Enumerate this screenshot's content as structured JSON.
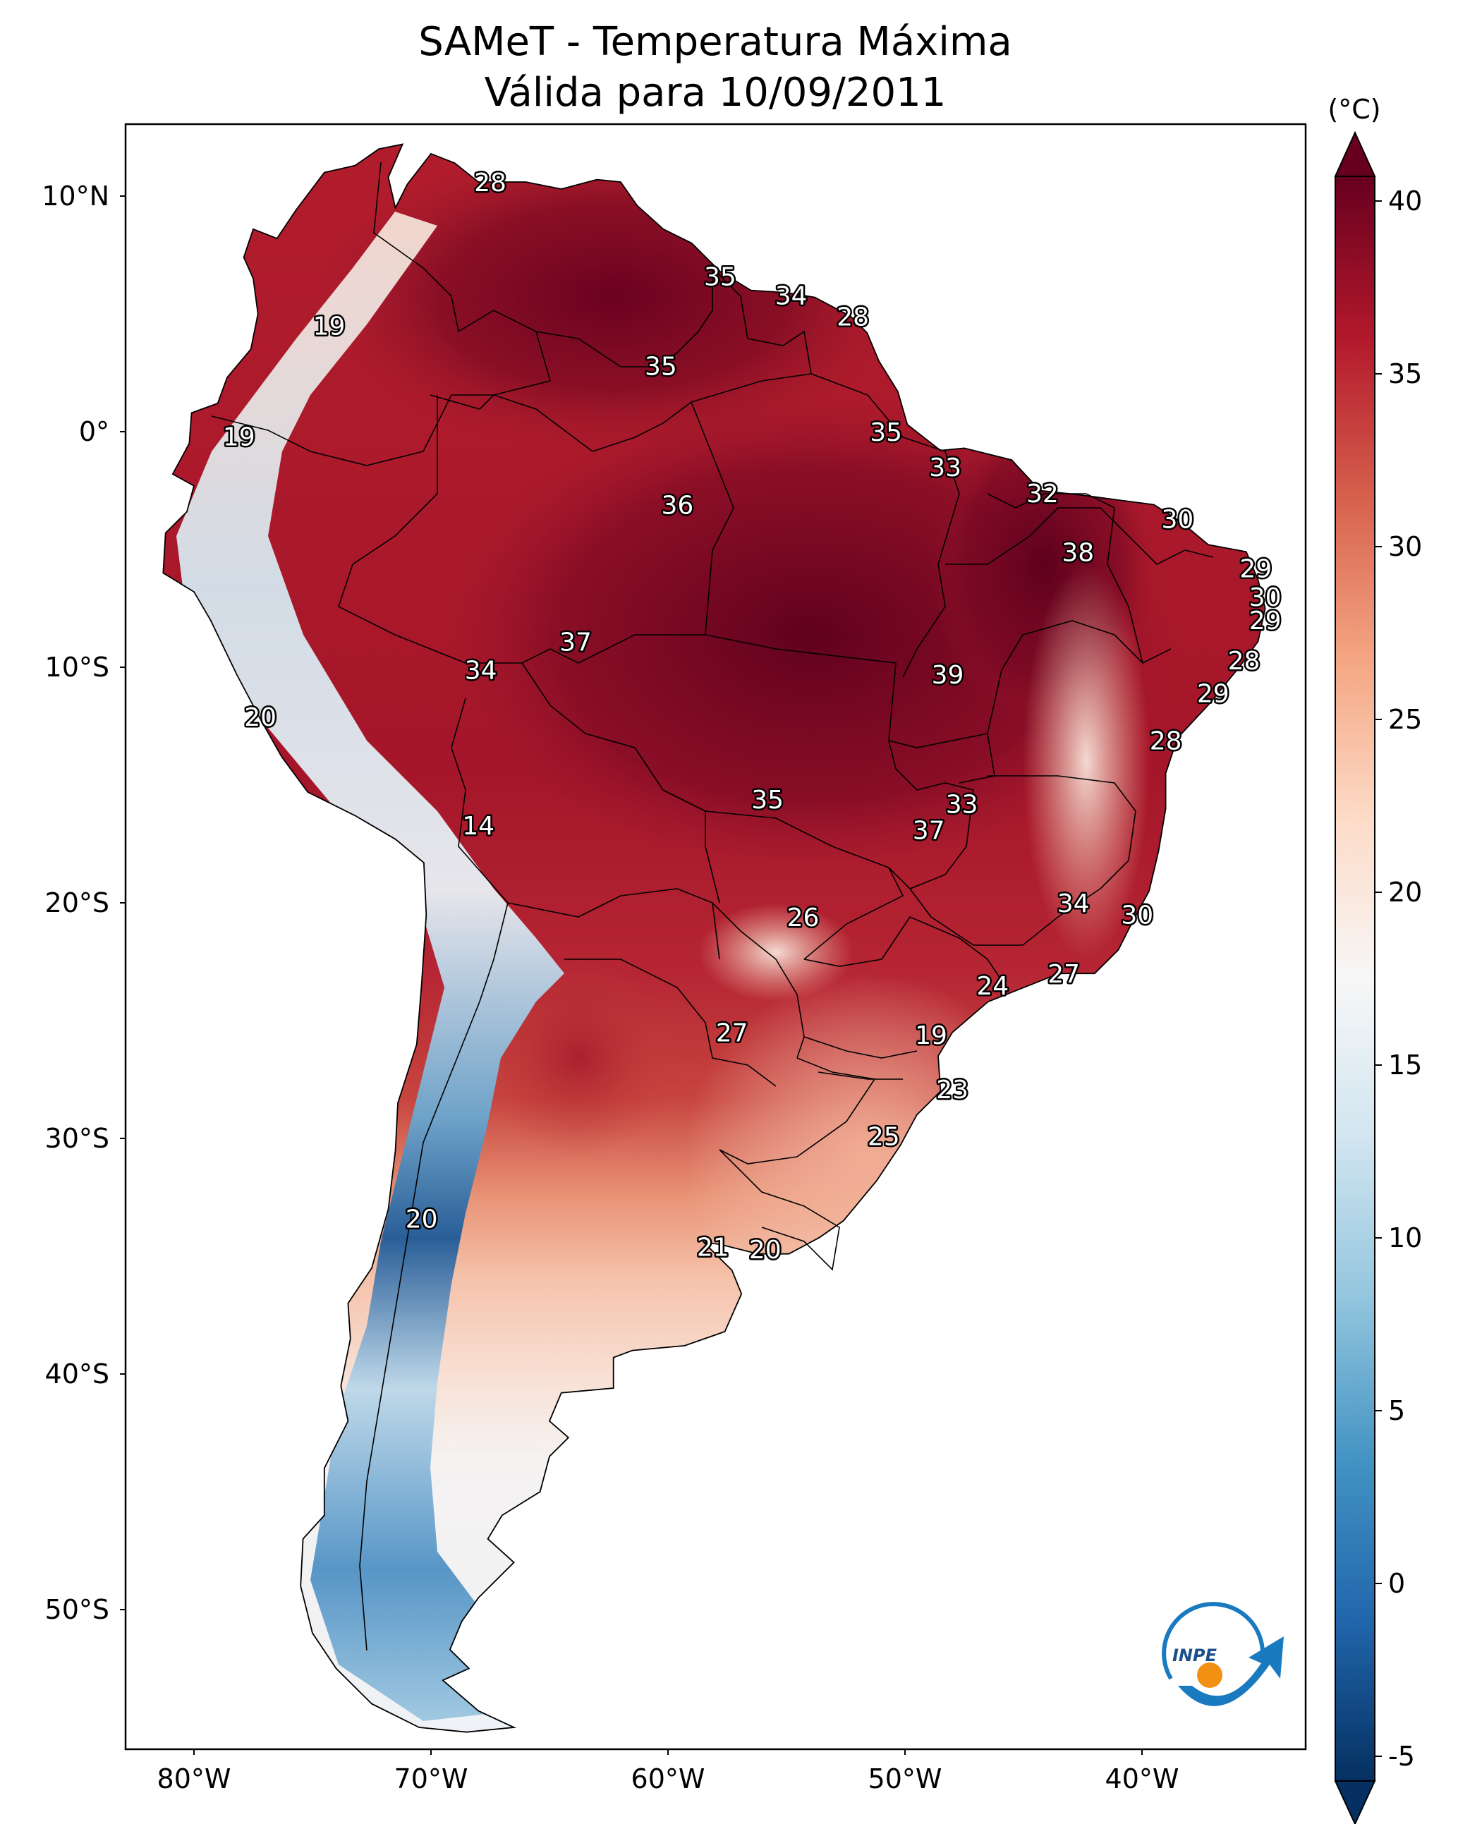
{
  "title": {
    "line1": "SAMeT - Temperatura Máxima",
    "line2": "Válida para 10/09/2011"
  },
  "axes": {
    "lat_ticks": [
      {
        "label": "10°N",
        "lat": 10
      },
      {
        "label": "0°",
        "lat": 0
      },
      {
        "label": "10°S",
        "lat": -10
      },
      {
        "label": "20°S",
        "lat": -20
      },
      {
        "label": "30°S",
        "lat": -30
      },
      {
        "label": "40°S",
        "lat": -40
      },
      {
        "label": "50°S",
        "lat": -50
      }
    ],
    "lon_ticks": [
      {
        "label": "80°W",
        "lon": -80
      },
      {
        "label": "70°W",
        "lon": -70
      },
      {
        "label": "60°W",
        "lon": -60
      },
      {
        "label": "50°W",
        "lon": -50
      },
      {
        "label": "40°W",
        "lon": -40
      }
    ],
    "lon_range": [
      -83,
      -33
    ],
    "lat_range": [
      -56,
      13
    ]
  },
  "colorbar": {
    "unit": "(°C)",
    "ticks": [
      "40",
      "35",
      "30",
      "25",
      "20",
      "15",
      "10",
      "5",
      "0",
      "-5"
    ],
    "min": -5,
    "max": 40,
    "colors": [
      "#053061",
      "#2166ac",
      "#4393c3",
      "#92c5de",
      "#d1e5f0",
      "#f7f7f7",
      "#fddbc7",
      "#f4a582",
      "#d6604d",
      "#b2182b",
      "#67001f"
    ]
  },
  "logo": {
    "text": "INPE"
  },
  "temperature_labels": [
    {
      "text": "28",
      "lon": -67.5,
      "lat": 10.6
    },
    {
      "text": "19",
      "lon": -74.3,
      "lat": 4.5
    },
    {
      "text": "35",
      "lon": -57.8,
      "lat": 6.6
    },
    {
      "text": "34",
      "lon": -54.8,
      "lat": 5.8
    },
    {
      "text": "28",
      "lon": -52.2,
      "lat": 4.9
    },
    {
      "text": "35",
      "lon": -60.3,
      "lat": 2.8
    },
    {
      "text": "19",
      "lon": -78.1,
      "lat": -0.2
    },
    {
      "text": "35",
      "lon": -50.8,
      "lat": 0.0
    },
    {
      "text": "33",
      "lon": -48.3,
      "lat": -1.5
    },
    {
      "text": "32",
      "lon": -44.2,
      "lat": -2.6
    },
    {
      "text": "36",
      "lon": -59.6,
      "lat": -3.1
    },
    {
      "text": "30",
      "lon": -38.5,
      "lat": -3.7
    },
    {
      "text": "38",
      "lon": -42.7,
      "lat": -5.1
    },
    {
      "text": "29",
      "lon": -35.2,
      "lat": -5.8
    },
    {
      "text": "30",
      "lon": -34.8,
      "lat": -7.0
    },
    {
      "text": "29",
      "lon": -34.8,
      "lat": -8.0
    },
    {
      "text": "37",
      "lon": -63.9,
      "lat": -8.9
    },
    {
      "text": "28",
      "lon": -35.7,
      "lat": -9.7
    },
    {
      "text": "34",
      "lon": -67.9,
      "lat": -10.1
    },
    {
      "text": "39",
      "lon": -48.2,
      "lat": -10.3
    },
    {
      "text": "29",
      "lon": -37.0,
      "lat": -11.1
    },
    {
      "text": "20",
      "lon": -77.2,
      "lat": -12.1
    },
    {
      "text": "28",
      "lon": -39.0,
      "lat": -13.1
    },
    {
      "text": "35",
      "lon": -55.8,
      "lat": -15.6
    },
    {
      "text": "33",
      "lon": -47.6,
      "lat": -15.8
    },
    {
      "text": "14",
      "lon": -68.0,
      "lat": -16.7
    },
    {
      "text": "37",
      "lon": -49.0,
      "lat": -16.9
    },
    {
      "text": "34",
      "lon": -42.9,
      "lat": -20.0
    },
    {
      "text": "30",
      "lon": -40.2,
      "lat": -20.5
    },
    {
      "text": "26",
      "lon": -54.3,
      "lat": -20.6
    },
    {
      "text": "27",
      "lon": -43.3,
      "lat": -23.0
    },
    {
      "text": "24",
      "lon": -46.3,
      "lat": -23.5
    },
    {
      "text": "27",
      "lon": -57.3,
      "lat": -25.5
    },
    {
      "text": "19",
      "lon": -48.9,
      "lat": -25.6
    },
    {
      "text": "23",
      "lon": -48.0,
      "lat": -27.9
    },
    {
      "text": "25",
      "lon": -50.9,
      "lat": -29.9
    },
    {
      "text": "20",
      "lon": -70.4,
      "lat": -33.4
    },
    {
      "text": "21",
      "lon": -58.1,
      "lat": -34.6
    },
    {
      "text": "20",
      "lon": -55.9,
      "lat": -34.7
    }
  ]
}
